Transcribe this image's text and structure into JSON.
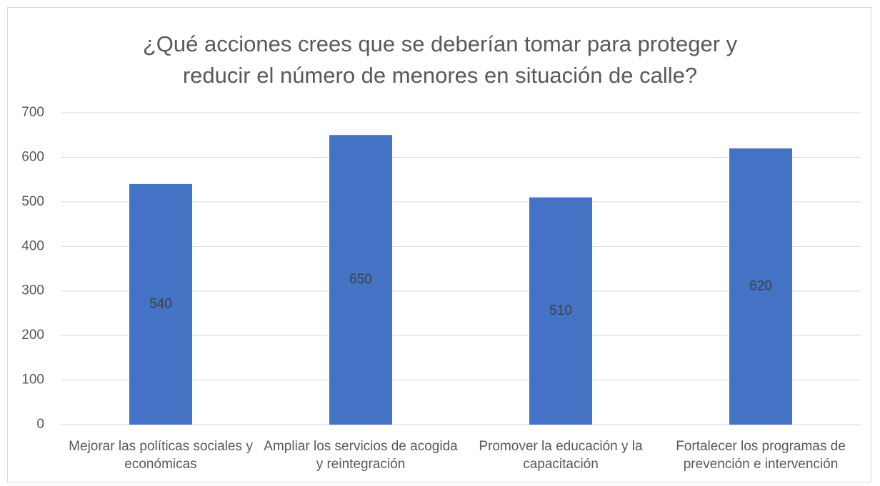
{
  "chart_data": {
    "type": "bar",
    "title": "¿Qué acciones crees que se deberían tomar para proteger y reducir el número de menores en situación de calle?",
    "categories": [
      "Mejorar las políticas sociales y económicas",
      "Ampliar los servicios de acogida y reintegración",
      "Promover la educación y la capacitación",
      "Fortalecer los programas de prevención e intervención"
    ],
    "values": [
      540,
      650,
      510,
      620
    ],
    "color": "#4472c4",
    "ylim": [
      0,
      700
    ],
    "yticks": [
      0,
      100,
      200,
      300,
      400,
      500,
      600,
      700
    ],
    "grid": true
  }
}
